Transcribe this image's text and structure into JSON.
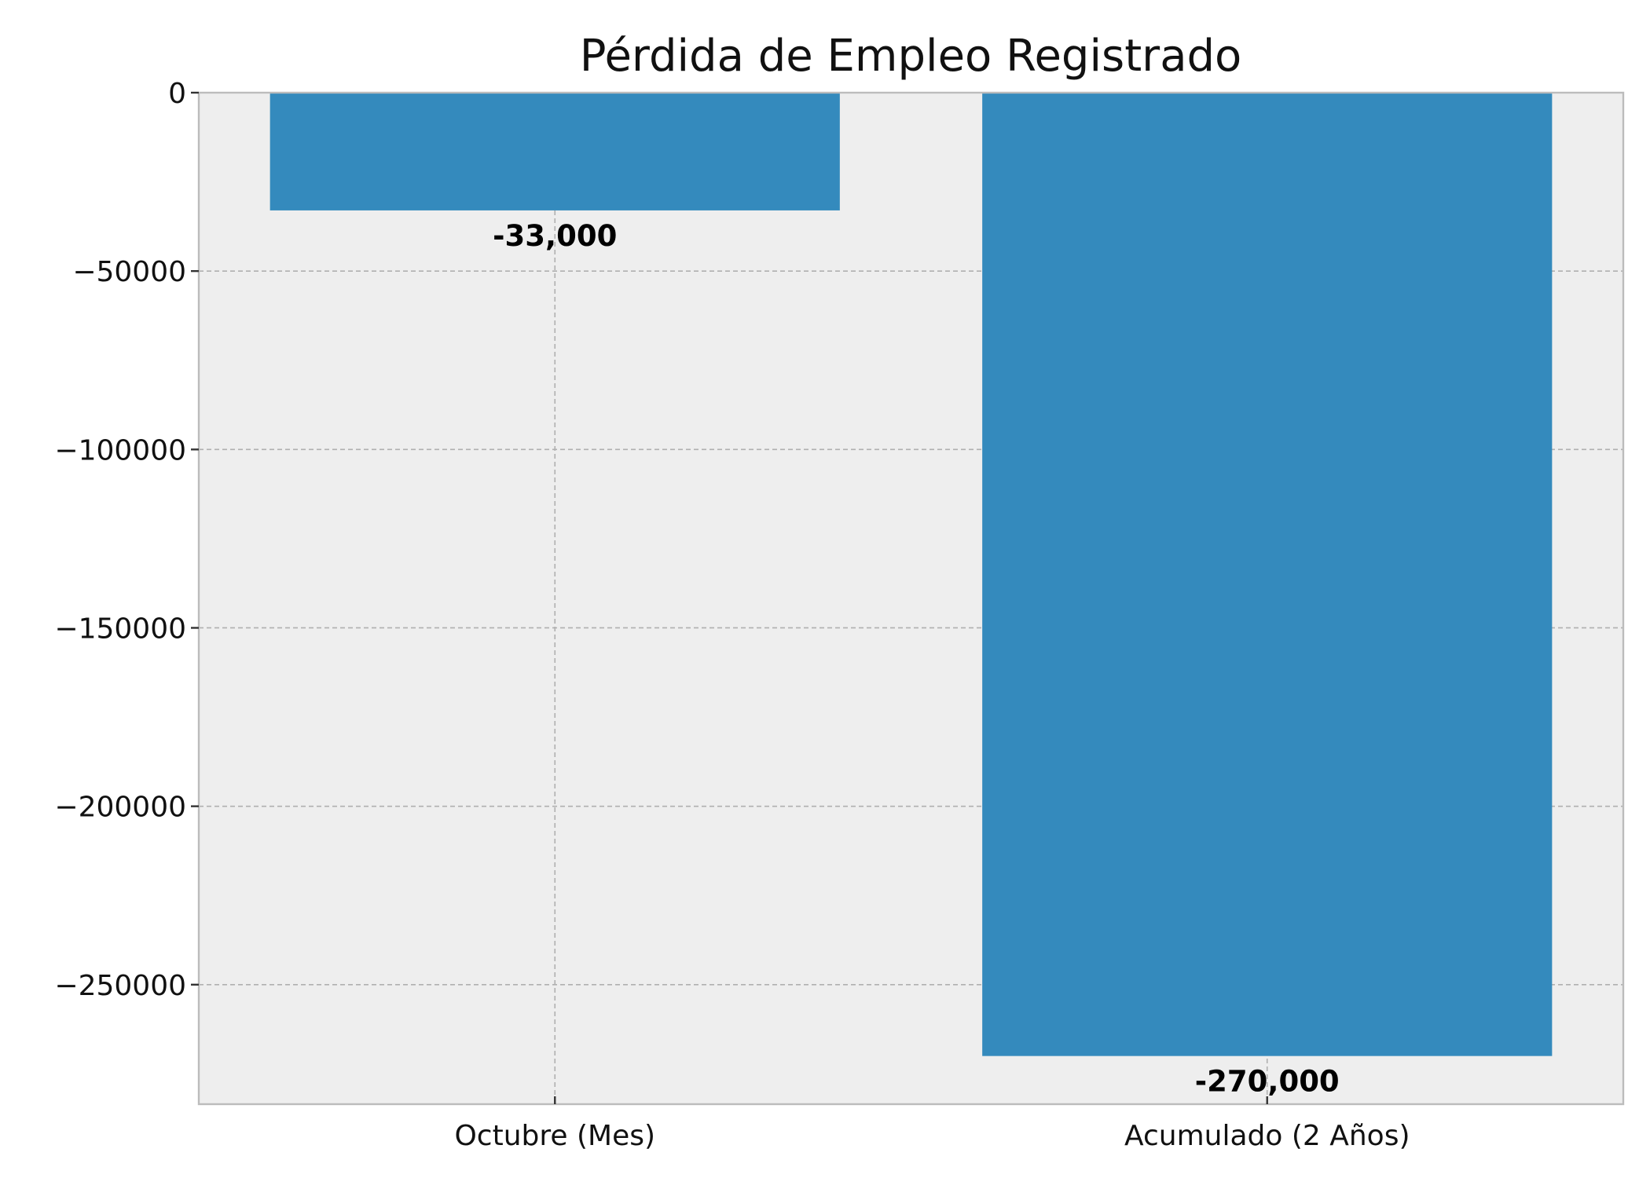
{
  "chart_data": {
    "type": "bar",
    "title": "Pérdida de Empleo Registrado",
    "xlabel": "",
    "ylabel": "",
    "categories": [
      "Octubre (Mes)",
      "Acumulado (2 Años)"
    ],
    "values": [
      -33000,
      -270000
    ],
    "value_labels": [
      "-33,000",
      "-270,000"
    ],
    "ylim": [
      -283500,
      0
    ],
    "yticks": [
      0,
      -50000,
      -100000,
      -150000,
      -200000,
      -250000
    ],
    "ytick_labels": [
      "0",
      "−50000",
      "−100000",
      "−150000",
      "−200000",
      "−250000"
    ],
    "grid": true,
    "legend": "none",
    "colors": {
      "bar": "#348ABD",
      "plot_background": "#EEEEEE",
      "frame": "#BCBCBC",
      "grid": "#B0B0B0"
    }
  }
}
